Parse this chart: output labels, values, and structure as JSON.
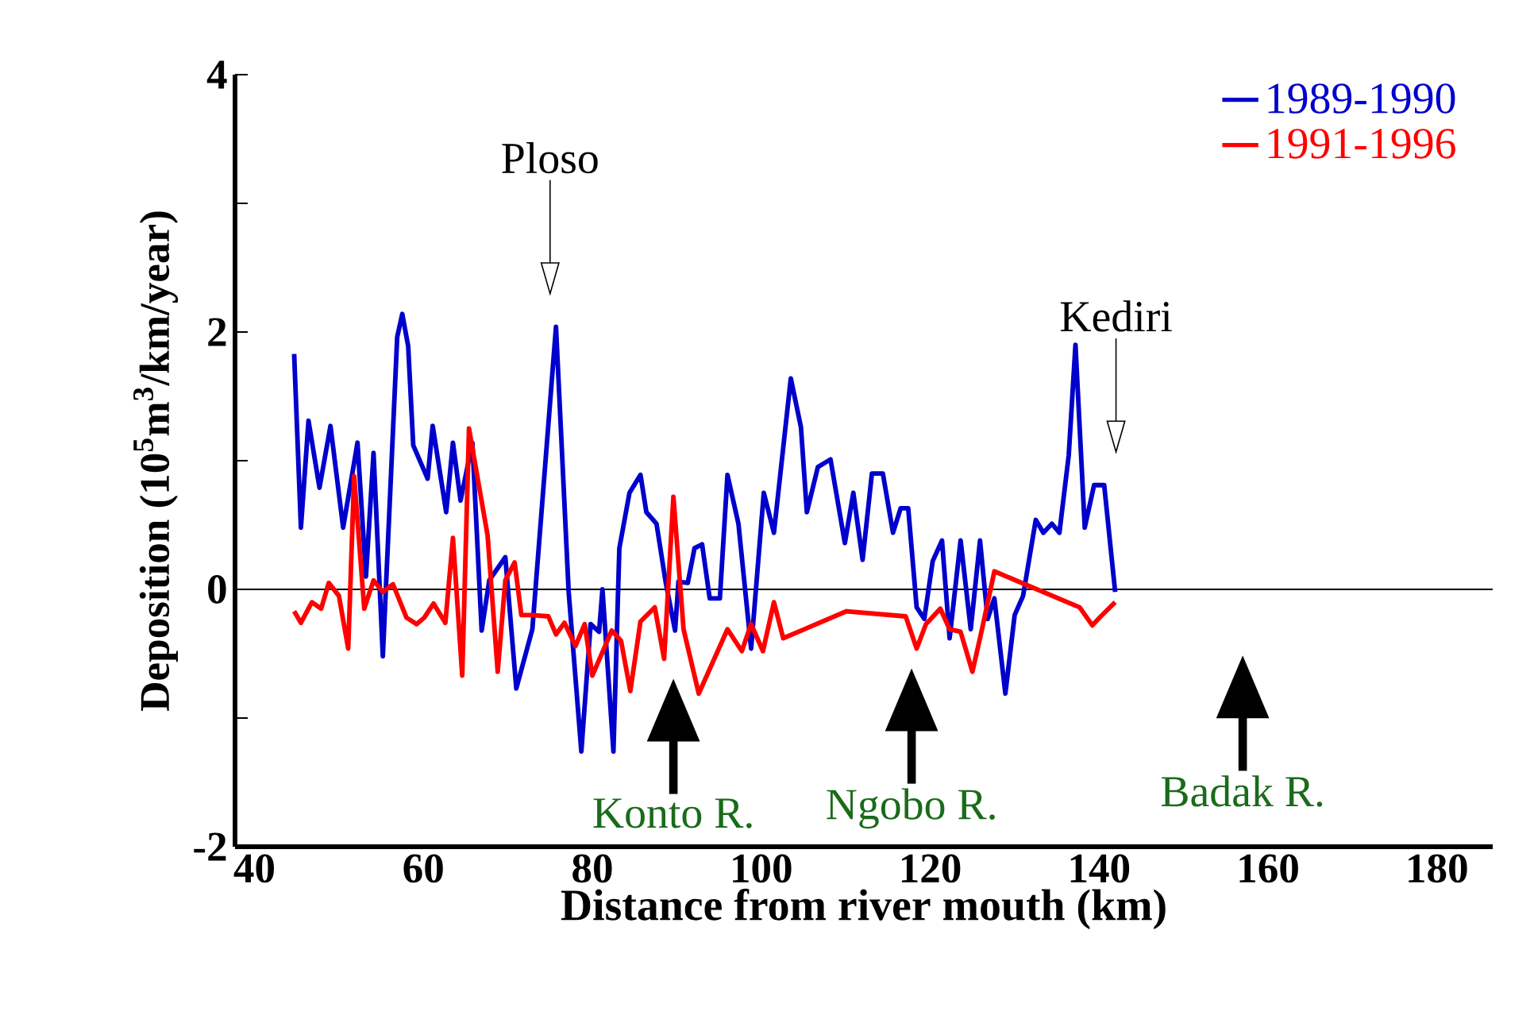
{
  "chart_data": {
    "type": "line",
    "xlabel": "Distance from river mouth (km)",
    "ylabel": "Deposition (10$^{5}$m$^{3}$/km/year)",
    "xlim": [
      37.7,
      186.6
    ],
    "ylim": [
      -2,
      4
    ],
    "xticks": [
      40,
      60,
      80,
      100,
      120,
      140,
      160,
      180
    ],
    "yticks": [
      -2,
      {
        "value": -1,
        "label": null
      },
      0,
      {
        "value": 1,
        "label": null
      },
      2,
      {
        "value": 3,
        "label": null
      },
      4
    ],
    "legend": "top right",
    "marker": "none",
    "line_style": "solid",
    "ref_lines": [
      {
        "axis": "y",
        "value": 0,
        "color": "#000000"
      },
      {
        "axis": "x",
        "value": 75,
        "label": "Ploso",
        "color": "#000000"
      },
      {
        "axis": "x",
        "value": 142,
        "label": "Kediri",
        "color": "#000000"
      },
      {
        "axis": "x",
        "value": 89.6,
        "label": "Konto R."
      },
      {
        "axis": "x",
        "value": 117.8,
        "label": "Ngobo R."
      },
      {
        "axis": "x",
        "value": 157,
        "label": "Badak R."
      }
    ],
    "series": [
      {
        "name": "1989-1990",
        "color": "#0000cc",
        "x": [
          44.7,
          45.5,
          46.4,
          47.7,
          49.0,
          50.5,
          52.2,
          53.2,
          54.1,
          55.2,
          56.9,
          57.5,
          58.2,
          58.8,
          60.5,
          61.1,
          62.7,
          63.5,
          64.4,
          65.8,
          66.9,
          67.8,
          69.7,
          71.0,
          72.9,
          75.7,
          77.2,
          78.7,
          79.8,
          80.8,
          81.2,
          82.5,
          83.2,
          84.4,
          85.7,
          86.4,
          87.6,
          88.7,
          89.8,
          90.2,
          91.3,
          92.1,
          93.0,
          93.9,
          95.1,
          96.0,
          97.3,
          98.8,
          100.3,
          101.5,
          103.5,
          104.7,
          105.4,
          106.7,
          108.2,
          109.9,
          110.9,
          112.0,
          113.1,
          114.4,
          115.6,
          116.5,
          117.4,
          118.4,
          119.3,
          120.3,
          121.4,
          122.3,
          123.6,
          124.8,
          125.9,
          126.8,
          127.6,
          128.9,
          130.0,
          131.0,
          132.5,
          133.4,
          134.4,
          135.3,
          136.4,
          137.2,
          138.3,
          139.4,
          140.6,
          141.9
        ],
        "values": [
          1.83,
          0.48,
          1.31,
          0.79,
          1.27,
          0.48,
          1.14,
          0.1,
          1.06,
          -0.52,
          1.96,
          2.14,
          1.89,
          1.12,
          0.86,
          1.27,
          0.6,
          1.14,
          0.69,
          1.14,
          -0.32,
          0.07,
          0.25,
          -0.77,
          -0.31,
          2.04,
          -0.02,
          -1.26,
          -0.27,
          -0.33,
          0.0,
          -1.26,
          0.32,
          0.75,
          0.89,
          0.6,
          0.51,
          0.05,
          -0.32,
          0.06,
          0.05,
          0.32,
          0.35,
          -0.07,
          -0.07,
          0.89,
          0.51,
          -0.46,
          0.75,
          0.44,
          1.64,
          1.26,
          0.6,
          0.95,
          1.01,
          0.36,
          0.75,
          0.23,
          0.9,
          0.9,
          0.44,
          0.63,
          0.63,
          -0.14,
          -0.23,
          0.22,
          0.38,
          -0.38,
          0.38,
          -0.31,
          0.38,
          -0.23,
          -0.07,
          -0.81,
          -0.2,
          -0.05,
          0.54,
          0.44,
          0.51,
          0.44,
          1.04,
          1.9,
          0.48,
          0.81,
          0.81,
          -0.02
        ]
      },
      {
        "name": "1991-1996",
        "color": "#ff0000",
        "x": [
          44.7,
          45.5,
          46.8,
          47.9,
          48.8,
          50.0,
          51.1,
          51.8,
          53.0,
          54.1,
          55.2,
          56.4,
          58.0,
          59.2,
          60.1,
          61.2,
          62.6,
          63.5,
          64.6,
          65.4,
          67.6,
          68.8,
          69.7,
          70.8,
          71.6,
          72.9,
          74.8,
          75.7,
          76.7,
          78.0,
          79.1,
          80.0,
          82.3,
          83.4,
          84.5,
          85.7,
          87.4,
          88.5,
          89.6,
          90.8,
          92.6,
          96.0,
          97.7,
          98.8,
          100.2,
          101.5,
          102.6,
          110.1,
          117.1,
          118.4,
          119.5,
          121.2,
          122.3,
          123.6,
          125.0,
          126.1,
          127.6,
          137.7,
          139.2,
          140.2,
          141.9
        ],
        "values": [
          -0.17,
          -0.26,
          -0.1,
          -0.15,
          0.05,
          -0.05,
          -0.46,
          0.88,
          -0.15,
          0.07,
          -0.02,
          0.04,
          -0.22,
          -0.27,
          -0.22,
          -0.11,
          -0.26,
          0.4,
          -0.67,
          1.25,
          0.42,
          -0.64,
          0.07,
          0.21,
          -0.2,
          -0.2,
          -0.21,
          -0.35,
          -0.26,
          -0.44,
          -0.27,
          -0.67,
          -0.32,
          -0.4,
          -0.79,
          -0.25,
          -0.14,
          -0.54,
          0.72,
          -0.31,
          -0.81,
          -0.31,
          -0.48,
          -0.27,
          -0.48,
          -0.1,
          -0.38,
          -0.17,
          -0.21,
          -0.46,
          -0.27,
          -0.15,
          -0.31,
          -0.33,
          -0.64,
          -0.32,
          0.14,
          -0.14,
          -0.28,
          -0.21,
          -0.1
        ]
      }
    ]
  }
}
